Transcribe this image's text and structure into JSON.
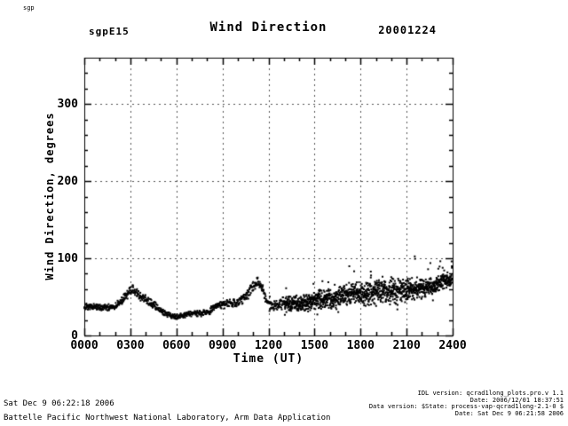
{
  "header": {
    "corner_text": "sgp",
    "site": "sgpE15",
    "title": "Wind Direction",
    "date": "20001224"
  },
  "footer": {
    "left_line1": "Sat Dec  9 06:22:18 2006",
    "left_line2": "Battelle Pacific Northwest National Laboratory, Arm Data Application",
    "right_lines": [
      "IDL version: qcrad1long_plots.pro.v 1.1",
      "Date: 2006/12/01 18:37:51",
      "Data version: $State: process-vap-qcrad1long-2.1-0 $",
      "Date: Sat Dec  9 06:21:58 2006"
    ]
  },
  "chart_data": {
    "type": "scatter",
    "title": "Wind Direction",
    "site": "sgpE15",
    "date": "20001224",
    "xlabel": "Time (UT)",
    "ylabel": "Wind Direction, degrees",
    "xlim": [
      0,
      1440
    ],
    "ylim": [
      0,
      360
    ],
    "grid": true,
    "grid_style": "dashed",
    "marker": "dot",
    "marker_color": "#000000",
    "x_minor_step": 60,
    "y_minor_step": 20,
    "x_ticks": [
      {
        "t": 0,
        "label": "0000"
      },
      {
        "t": 180,
        "label": "0300"
      },
      {
        "t": 360,
        "label": "0600"
      },
      {
        "t": 540,
        "label": "0900"
      },
      {
        "t": 720,
        "label": "1200"
      },
      {
        "t": 900,
        "label": "1500"
      },
      {
        "t": 1080,
        "label": "1800"
      },
      {
        "t": 1260,
        "label": "2100"
      },
      {
        "t": 1440,
        "label": "2400"
      }
    ],
    "y_ticks": [
      {
        "v": 0,
        "label": "0"
      },
      {
        "v": 100,
        "label": "100"
      },
      {
        "v": 200,
        "label": "200"
      },
      {
        "v": 300,
        "label": "300"
      }
    ],
    "trend": {
      "description": "piecewise-linear envelope of the scatter: [minute_of_day, mean_degrees, spread_degrees]",
      "points": [
        [
          0,
          36,
          5
        ],
        [
          60,
          35,
          5
        ],
        [
          120,
          37,
          5
        ],
        [
          150,
          43,
          6
        ],
        [
          190,
          60,
          7
        ],
        [
          215,
          52,
          7
        ],
        [
          240,
          46,
          8
        ],
        [
          300,
          33,
          5
        ],
        [
          360,
          27,
          4
        ],
        [
          420,
          28,
          4
        ],
        [
          480,
          32,
          5
        ],
        [
          540,
          37,
          6
        ],
        [
          600,
          43,
          7
        ],
        [
          640,
          52,
          8
        ],
        [
          680,
          67,
          8
        ],
        [
          700,
          58,
          8
        ],
        [
          720,
          40,
          8
        ],
        [
          780,
          42,
          10
        ],
        [
          840,
          44,
          12
        ],
        [
          900,
          46,
          13
        ],
        [
          960,
          48,
          15
        ],
        [
          1020,
          50,
          16
        ],
        [
          1080,
          53,
          17
        ],
        [
          1140,
          56,
          18
        ],
        [
          1200,
          58,
          19
        ],
        [
          1260,
          60,
          18
        ],
        [
          1320,
          64,
          15
        ],
        [
          1380,
          68,
          12
        ],
        [
          1439,
          73,
          9
        ]
      ]
    }
  }
}
